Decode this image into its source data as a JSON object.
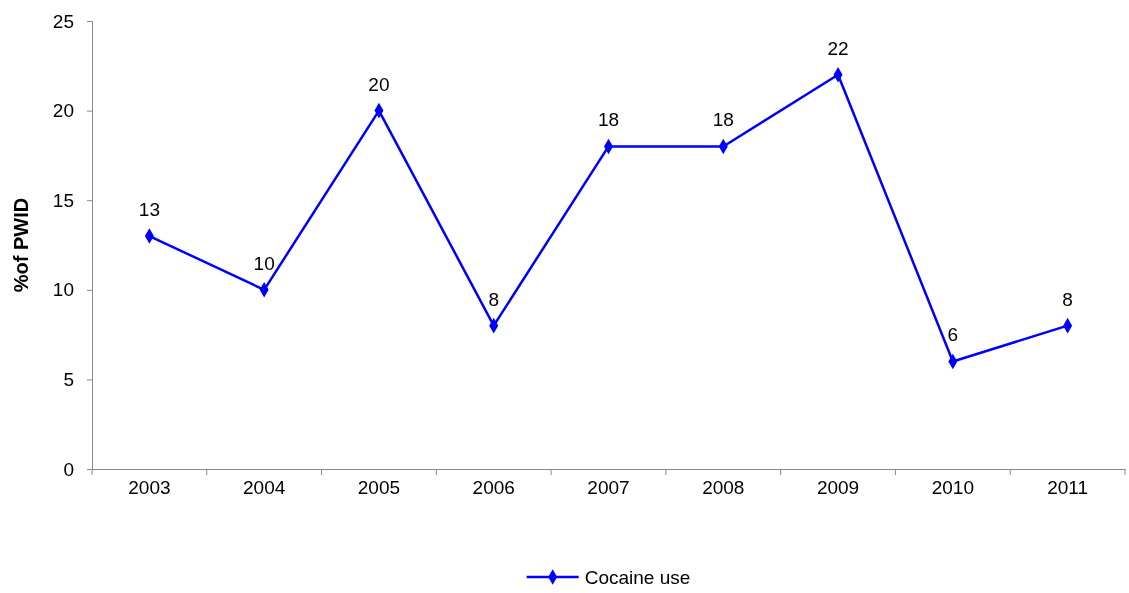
{
  "chart_data": {
    "type": "line",
    "ylabel": "%of PWID",
    "categories": [
      "2003",
      "2004",
      "2005",
      "2006",
      "2007",
      "2008",
      "2009",
      "2010",
      "2011"
    ],
    "series": [
      {
        "name": "Cocaine use",
        "color": "#0000ff",
        "values": [
          13,
          10,
          20,
          8,
          18,
          18,
          22,
          6,
          8
        ]
      }
    ],
    "ylim": [
      0,
      25
    ],
    "yticks": [
      0,
      5,
      10,
      15,
      20,
      25
    ],
    "grid": false,
    "legend": "bottom",
    "marker": "diamond",
    "line_style": "solid",
    "data_labels": true
  }
}
